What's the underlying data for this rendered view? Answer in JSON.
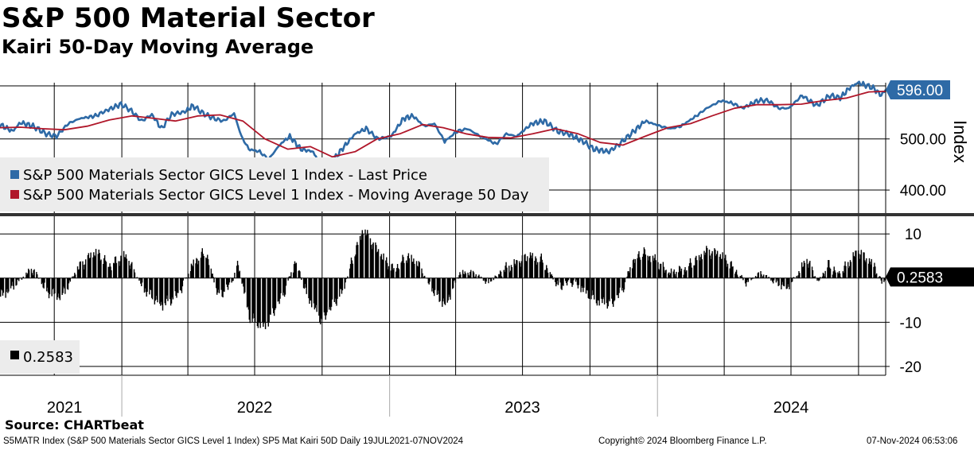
{
  "header": {
    "title": "S&P 500 Material Sector",
    "subtitle": "Kairi 50-Day Moving Average"
  },
  "footer": {
    "source": "Source: CHARTbeat",
    "left": "S5MATR Index (S&P 500 Materials Sector GICS Level 1 Index) SP5 Mat Kairi 50D  Daily 19JUL2021-07NOV2024",
    "center": "Copyright© 2024 Bloomberg Finance L.P.",
    "right": "07-Nov-2024 06:53:06"
  },
  "colors": {
    "price": "#2e6aa6",
    "moving_average": "#b0172a",
    "kairi": "#000000",
    "legend_bg": "#ececec",
    "divider": "#333333"
  },
  "chart_data": [
    {
      "type": "line",
      "panel": "upper",
      "ylabel": "Index",
      "ylim": [
        355,
        610
      ],
      "yticks": [
        {
          "value": 400,
          "label": "400.00"
        },
        {
          "value": 500,
          "label": "500.00"
        }
      ],
      "last_value_label": "596.00",
      "last_value": 596,
      "grid": true,
      "legend_placement": "lower-left",
      "x_range": [
        "2021-07-19",
        "2024-11-07"
      ],
      "series": [
        {
          "name": "S&P 500 Materials Sector GICS Level 1 Index - Last Price",
          "color": "#2e6aa6",
          "points": [
            [
              "2021-07-19",
              528
            ],
            [
              "2021-08-05",
              515
            ],
            [
              "2021-08-16",
              532
            ],
            [
              "2021-09-02",
              525
            ],
            [
              "2021-09-20",
              510
            ],
            [
              "2021-10-04",
              505
            ],
            [
              "2021-10-20",
              530
            ],
            [
              "2021-11-05",
              540
            ],
            [
              "2021-11-26",
              545
            ],
            [
              "2021-12-10",
              555
            ],
            [
              "2021-12-31",
              568
            ],
            [
              "2022-01-14",
              555
            ],
            [
              "2022-01-28",
              535
            ],
            [
              "2022-02-11",
              548
            ],
            [
              "2022-02-24",
              520
            ],
            [
              "2022-03-10",
              548
            ],
            [
              "2022-03-28",
              553
            ],
            [
              "2022-04-08",
              565
            ],
            [
              "2022-04-22",
              550
            ],
            [
              "2022-05-06",
              540
            ],
            [
              "2022-05-20",
              535
            ],
            [
              "2022-06-03",
              550
            ],
            [
              "2022-06-13",
              505
            ],
            [
              "2022-06-23",
              480
            ],
            [
              "2022-07-08",
              475
            ],
            [
              "2022-07-20",
              460
            ],
            [
              "2022-08-05",
              490
            ],
            [
              "2022-08-18",
              505
            ],
            [
              "2022-09-02",
              480
            ],
            [
              "2022-09-19",
              475
            ],
            [
              "2022-09-30",
              440
            ],
            [
              "2022-10-14",
              455
            ],
            [
              "2022-10-31",
              485
            ],
            [
              "2022-11-15",
              510
            ],
            [
              "2022-11-30",
              520
            ],
            [
              "2022-12-16",
              500
            ],
            [
              "2023-01-03",
              505
            ],
            [
              "2023-01-20",
              540
            ],
            [
              "2023-02-02",
              545
            ],
            [
              "2023-02-17",
              525
            ],
            [
              "2023-03-03",
              530
            ],
            [
              "2023-03-17",
              495
            ],
            [
              "2023-04-03",
              515
            ],
            [
              "2023-04-17",
              520
            ],
            [
              "2023-05-05",
              505
            ],
            [
              "2023-05-26",
              490
            ],
            [
              "2023-06-09",
              510
            ],
            [
              "2023-06-23",
              505
            ],
            [
              "2023-07-14",
              530
            ],
            [
              "2023-07-31",
              535
            ],
            [
              "2023-08-18",
              515
            ],
            [
              "2023-09-01",
              510
            ],
            [
              "2023-09-22",
              495
            ],
            [
              "2023-10-06",
              480
            ],
            [
              "2023-10-27",
              475
            ],
            [
              "2023-11-10",
              490
            ],
            [
              "2023-11-30",
              515
            ],
            [
              "2023-12-15",
              535
            ],
            [
              "2024-01-05",
              525
            ],
            [
              "2024-01-19",
              520
            ],
            [
              "2024-02-02",
              525
            ],
            [
              "2024-02-23",
              545
            ],
            [
              "2024-03-08",
              560
            ],
            [
              "2024-03-28",
              575
            ],
            [
              "2024-04-12",
              570
            ],
            [
              "2024-04-26",
              560
            ],
            [
              "2024-05-17",
              575
            ],
            [
              "2024-05-31",
              575
            ],
            [
              "2024-06-14",
              560
            ],
            [
              "2024-06-28",
              560
            ],
            [
              "2024-07-16",
              585
            ],
            [
              "2024-08-05",
              565
            ],
            [
              "2024-08-23",
              585
            ],
            [
              "2024-09-06",
              580
            ],
            [
              "2024-09-19",
              600
            ],
            [
              "2024-09-30",
              610
            ],
            [
              "2024-10-11",
              605
            ],
            [
              "2024-10-21",
              600
            ],
            [
              "2024-11-01",
              585
            ],
            [
              "2024-11-07",
              596
            ]
          ]
        },
        {
          "name": "S&P 500 Materials Sector GICS Level 1 Index - Moving Average 50 Day",
          "color": "#b0172a",
          "points": [
            [
              "2021-07-19",
              522
            ],
            [
              "2021-08-16",
              523
            ],
            [
              "2021-09-15",
              520
            ],
            [
              "2021-10-15",
              518
            ],
            [
              "2021-11-15",
              525
            ],
            [
              "2021-12-15",
              537
            ],
            [
              "2022-01-15",
              545
            ],
            [
              "2022-02-15",
              540
            ],
            [
              "2022-03-15",
              535
            ],
            [
              "2022-04-15",
              545
            ],
            [
              "2022-05-15",
              547
            ],
            [
              "2022-06-15",
              535
            ],
            [
              "2022-07-15",
              500
            ],
            [
              "2022-08-15",
              480
            ],
            [
              "2022-09-15",
              485
            ],
            [
              "2022-10-15",
              465
            ],
            [
              "2022-11-15",
              475
            ],
            [
              "2022-12-15",
              500
            ],
            [
              "2023-01-15",
              510
            ],
            [
              "2023-02-15",
              528
            ],
            [
              "2023-03-15",
              522
            ],
            [
              "2023-04-15",
              510
            ],
            [
              "2023-05-15",
              503
            ],
            [
              "2023-06-15",
              502
            ],
            [
              "2023-07-15",
              510
            ],
            [
              "2023-08-15",
              520
            ],
            [
              "2023-09-15",
              510
            ],
            [
              "2023-10-15",
              493
            ],
            [
              "2023-11-15",
              488
            ],
            [
              "2023-12-15",
              505
            ],
            [
              "2024-01-15",
              522
            ],
            [
              "2024-02-15",
              530
            ],
            [
              "2024-03-15",
              545
            ],
            [
              "2024-04-15",
              560
            ],
            [
              "2024-05-15",
              567
            ],
            [
              "2024-06-15",
              567
            ],
            [
              "2024-07-15",
              568
            ],
            [
              "2024-08-15",
              575
            ],
            [
              "2024-09-15",
              580
            ],
            [
              "2024-10-15",
              592
            ],
            [
              "2024-11-07",
              593
            ]
          ]
        }
      ]
    },
    {
      "type": "bar",
      "panel": "lower",
      "ylim": [
        -22,
        14
      ],
      "yticks": [
        {
          "value": 10,
          "label": "10"
        },
        {
          "value": -10,
          "label": "-10"
        },
        {
          "value": -20,
          "label": "-20"
        }
      ],
      "last_value_label": "0.2583",
      "last_value": 0.2583,
      "grid": true,
      "legend_placement": "lower-left",
      "series": [
        {
          "name": "0.2583",
          "color": "#000000",
          "points": [
            [
              "2021-07-19",
              -4
            ],
            [
              "2021-08-10",
              -1
            ],
            [
              "2021-09-01",
              2
            ],
            [
              "2021-09-20",
              -3
            ],
            [
              "2021-10-10",
              -4
            ],
            [
              "2021-11-01",
              2
            ],
            [
              "2021-11-26",
              6
            ],
            [
              "2021-12-15",
              3
            ],
            [
              "2022-01-05",
              5
            ],
            [
              "2022-01-28",
              -2
            ],
            [
              "2022-02-24",
              -6
            ],
            [
              "2022-03-18",
              -4
            ],
            [
              "2022-04-10",
              4
            ],
            [
              "2022-04-25",
              6
            ],
            [
              "2022-05-12",
              -4
            ],
            [
              "2022-05-28",
              -2
            ],
            [
              "2022-06-08",
              3
            ],
            [
              "2022-06-24",
              -9
            ],
            [
              "2022-07-15",
              -11
            ],
            [
              "2022-08-08",
              -4
            ],
            [
              "2022-08-25",
              4
            ],
            [
              "2022-09-08",
              -3
            ],
            [
              "2022-09-30",
              -10
            ],
            [
              "2022-10-15",
              -6
            ],
            [
              "2022-10-28",
              -3
            ],
            [
              "2022-11-10",
              4
            ],
            [
              "2022-11-25",
              11
            ],
            [
              "2022-12-15",
              6
            ],
            [
              "2023-01-05",
              2
            ],
            [
              "2023-01-25",
              5
            ],
            [
              "2023-02-08",
              3
            ],
            [
              "2023-02-25",
              -2
            ],
            [
              "2023-03-17",
              -6
            ],
            [
              "2023-04-05",
              1
            ],
            [
              "2023-04-25",
              1
            ],
            [
              "2023-05-15",
              -1
            ],
            [
              "2023-06-05",
              2
            ],
            [
              "2023-06-20",
              3
            ],
            [
              "2023-07-10",
              5
            ],
            [
              "2023-07-28",
              4
            ],
            [
              "2023-08-18",
              -2
            ],
            [
              "2023-09-08",
              -1
            ],
            [
              "2023-09-25",
              -3
            ],
            [
              "2023-10-10",
              -5
            ],
            [
              "2023-10-30",
              -6
            ],
            [
              "2023-11-13",
              -3
            ],
            [
              "2023-11-28",
              4
            ],
            [
              "2023-12-12",
              6
            ],
            [
              "2023-12-28",
              4
            ],
            [
              "2024-01-15",
              1
            ],
            [
              "2024-02-05",
              2
            ],
            [
              "2024-02-20",
              4
            ],
            [
              "2024-03-08",
              6
            ],
            [
              "2024-03-28",
              5
            ],
            [
              "2024-04-15",
              2
            ],
            [
              "2024-04-30",
              -1
            ],
            [
              "2024-05-20",
              1
            ],
            [
              "2024-06-10",
              -1
            ],
            [
              "2024-06-25",
              -2
            ],
            [
              "2024-07-10",
              1
            ],
            [
              "2024-07-22",
              4
            ],
            [
              "2024-08-06",
              -1
            ],
            [
              "2024-08-20",
              3
            ],
            [
              "2024-09-05",
              1
            ],
            [
              "2024-09-20",
              4
            ],
            [
              "2024-09-30",
              6
            ],
            [
              "2024-10-12",
              4
            ],
            [
              "2024-10-22",
              3
            ],
            [
              "2024-11-01",
              -1
            ],
            [
              "2024-11-07",
              0.2583
            ]
          ]
        }
      ]
    },
    {
      "type": "axis",
      "panel": "time-axis",
      "year_labels": [
        {
          "label": "2021",
          "center": "2021-10-15"
        },
        {
          "label": "2022",
          "center": "2022-07-01"
        },
        {
          "label": "2023",
          "center": "2023-07-01"
        },
        {
          "label": "2024",
          "center": "2024-07-01"
        }
      ],
      "year_boundaries": [
        "2022-01-01",
        "2023-01-01",
        "2024-01-01"
      ],
      "quarter_gridlines": [
        "2021-10-01",
        "2022-01-01",
        "2022-04-01",
        "2022-07-01",
        "2022-10-01",
        "2023-01-01",
        "2023-04-01",
        "2023-07-01",
        "2023-10-01",
        "2024-01-01",
        "2024-04-01",
        "2024-07-01",
        "2024-10-01"
      ]
    }
  ]
}
